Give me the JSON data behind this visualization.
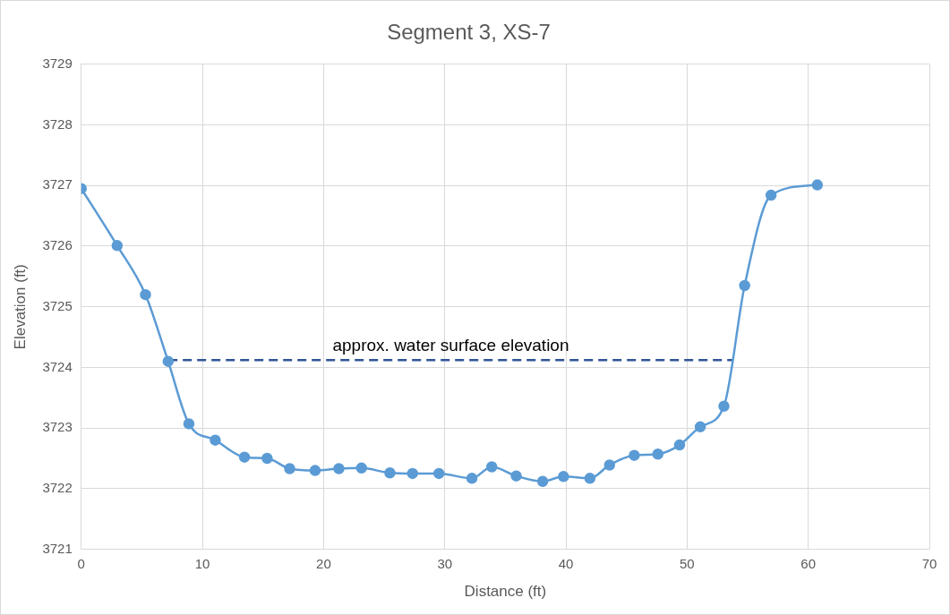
{
  "chart_data": {
    "type": "line",
    "title": "Segment 3, XS-7",
    "xlabel": "Distance (ft)",
    "ylabel": "Elevation (ft)",
    "xlim": [
      0,
      70
    ],
    "xticks": [
      0,
      10,
      20,
      30,
      40,
      50,
      60,
      70
    ],
    "ylim": [
      3721,
      3729
    ],
    "yticks": [
      3721,
      3722,
      3723,
      3724,
      3725,
      3726,
      3727,
      3728,
      3729
    ],
    "grid": true,
    "legend": false,
    "series": [
      {
        "color": "#5b9bd5",
        "marker": "circle",
        "x": [
          0,
          2.96,
          5.3,
          7.17,
          8.88,
          11.06,
          13.47,
          15.34,
          17.2,
          19.3,
          21.26,
          23.13,
          25.47,
          27.34,
          29.52,
          32.24,
          33.88,
          35.9,
          38.08,
          39.8,
          41.98,
          43.6,
          45.64,
          47.59,
          49.38,
          51.09,
          53.04,
          54.75,
          56.93,
          60.75
        ],
        "values": [
          3726.95,
          3726.01,
          3725.2,
          3724.1,
          3723.07,
          3722.8,
          3722.52,
          3722.5,
          3722.33,
          3722.3,
          3722.33,
          3722.34,
          3722.26,
          3722.25,
          3722.25,
          3722.17,
          3722.36,
          3722.21,
          3722.12,
          3722.2,
          3722.17,
          3722.39,
          3722.55,
          3722.57,
          3722.72,
          3723.02,
          3723.36,
          3725.35,
          3726.84,
          3727.01
        ]
      },
      {
        "name": "approx. water surface elevation",
        "color": "#2f5597",
        "marker": "none",
        "line_style": "dashed",
        "x": [
          7.2,
          53.8
        ],
        "values": [
          3724.12,
          3724.12
        ]
      }
    ]
  }
}
